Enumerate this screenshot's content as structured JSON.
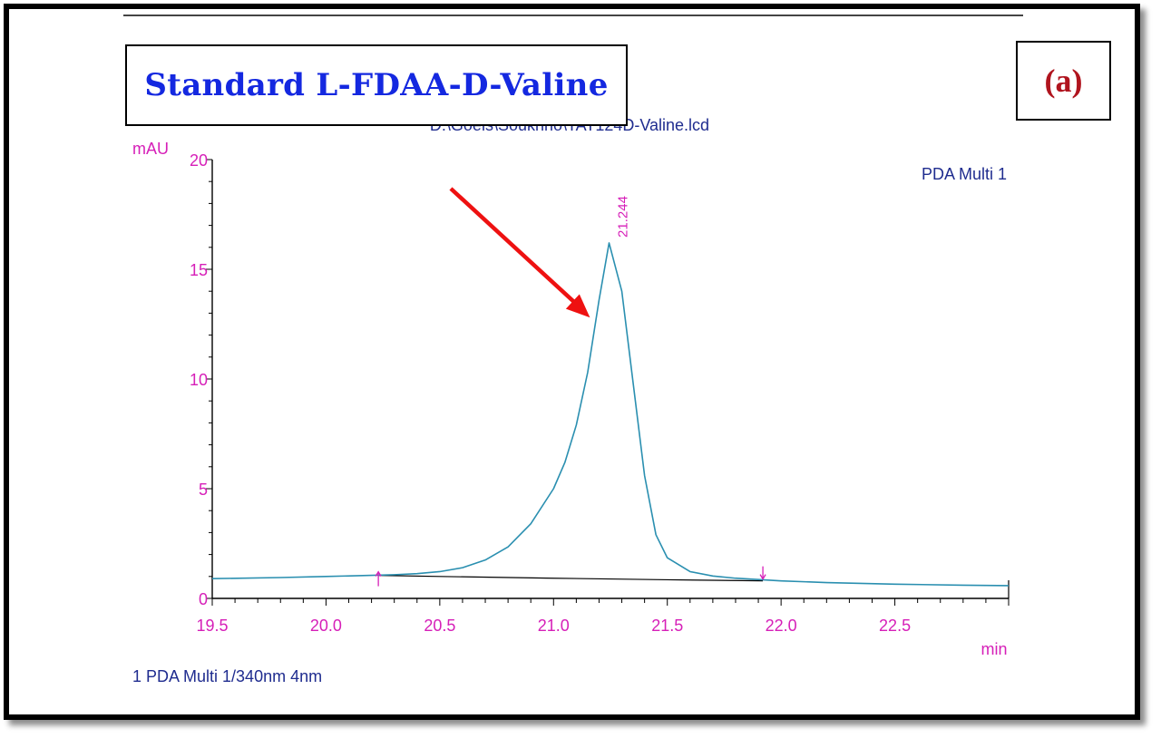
{
  "panel": {
    "title": "Standard L-FDAA-D-Valine",
    "label": "(a)",
    "file_name": "D:\\Goeis\\Souknrio\\TAT124D-Valine.lcd",
    "footer": "1  PDA Multi 1/340nm 4nm"
  },
  "colors": {
    "title": "#1428e0",
    "label": "#b0141e",
    "axis_text": "#d61fb8",
    "trace": "#2a8fb0",
    "baseline": "#000000",
    "arrow": "#ee1111",
    "legend_text": "#1f2c8f"
  },
  "chart_data": {
    "type": "line",
    "title": "",
    "xlabel": "min",
    "ylabel": "mAU",
    "xlim": [
      19.5,
      23.0
    ],
    "ylim": [
      0,
      20
    ],
    "x_ticks": [
      "19.5",
      "20.0",
      "20.5",
      "21.0",
      "21.5",
      "22.0",
      "22.5"
    ],
    "y_ticks": [
      "0",
      "5",
      "10",
      "15",
      "20"
    ],
    "legend": "PDA Multi 1",
    "legend_position": "top-right",
    "grid": false,
    "series": [
      {
        "name": "PDA Multi 1",
        "x": [
          19.5,
          19.8,
          20.0,
          20.2,
          20.3,
          20.4,
          20.5,
          20.6,
          20.7,
          20.8,
          20.9,
          21.0,
          21.05,
          21.1,
          21.15,
          21.2,
          21.244,
          21.3,
          21.35,
          21.4,
          21.45,
          21.5,
          21.6,
          21.7,
          21.8,
          21.9,
          22.0,
          22.2,
          22.5,
          22.8,
          23.0
        ],
        "y": [
          0.9,
          0.95,
          1.0,
          1.05,
          1.08,
          1.13,
          1.22,
          1.4,
          1.75,
          2.35,
          3.4,
          5.0,
          6.2,
          7.9,
          10.3,
          13.6,
          16.2,
          14.0,
          9.8,
          5.6,
          2.9,
          1.85,
          1.22,
          1.02,
          0.92,
          0.86,
          0.8,
          0.72,
          0.65,
          0.6,
          0.58
        ]
      }
    ],
    "integration_baseline": {
      "x": [
        20.23,
        20.5,
        21.0,
        21.5,
        21.92
      ],
      "y": [
        1.05,
        1.0,
        0.92,
        0.85,
        0.8
      ]
    },
    "peak": {
      "x": 21.244,
      "y": 16.2,
      "label": "21.244"
    },
    "markers": [
      {
        "x": 20.23,
        "direction": "up"
      },
      {
        "x": 21.92,
        "direction": "down"
      }
    ]
  }
}
